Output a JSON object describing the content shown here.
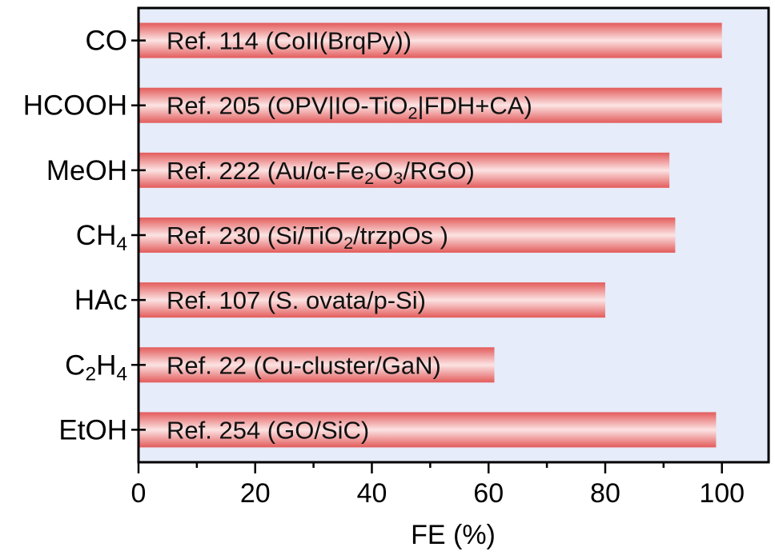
{
  "colors": {
    "plot_bg": "#e6ecf9",
    "bar_edge": "#e35b5b",
    "bar_mid": "#fce3e3",
    "axis": "#000000"
  },
  "chart_data": {
    "type": "bar",
    "orientation": "horizontal",
    "categories": [
      [
        {
          "t": "CO"
        }
      ],
      [
        {
          "t": "HCOOH"
        }
      ],
      [
        {
          "t": "MeOH"
        }
      ],
      [
        {
          "t": "CH"
        },
        {
          "t": "4",
          "sub": true
        }
      ],
      [
        {
          "t": "HAc"
        }
      ],
      [
        {
          "t": "C"
        },
        {
          "t": "2",
          "sub": true
        },
        {
          "t": "H"
        },
        {
          "t": "4",
          "sub": true
        }
      ],
      [
        {
          "t": "EtOH"
        }
      ]
    ],
    "values": [
      100,
      100,
      91,
      92,
      80,
      61,
      99
    ],
    "data_labels": [
      [
        {
          "t": "Ref. 114 (CoII(BrqPy))"
        }
      ],
      [
        {
          "t": "Ref. 205 (OPV|IO-TiO"
        },
        {
          "t": "2",
          "sub": true
        },
        {
          "t": "|FDH+CA)"
        }
      ],
      [
        {
          "t": "Ref. 222 (Au/α-Fe"
        },
        {
          "t": "2",
          "sub": true
        },
        {
          "t": "O"
        },
        {
          "t": "3",
          "sub": true
        },
        {
          "t": "/RGO)"
        }
      ],
      [
        {
          "t": "Ref. 230 (Si/TiO"
        },
        {
          "t": "2",
          "sub": true
        },
        {
          "t": "/trzpOs )"
        }
      ],
      [
        {
          "t": "Ref. 107 (S. ovata/p-Si)"
        }
      ],
      [
        {
          "t": "Ref. 22 (Cu-cluster/GaN)"
        }
      ],
      [
        {
          "t": "Ref. 254 (GO/SiC)"
        }
      ]
    ],
    "xlabel": "FE (%)",
    "ylabel": "",
    "xlim": [
      0,
      108
    ],
    "xticks": [
      0,
      20,
      40,
      60,
      80,
      100
    ],
    "minor_step": 10,
    "grid": false,
    "legend": "none"
  }
}
